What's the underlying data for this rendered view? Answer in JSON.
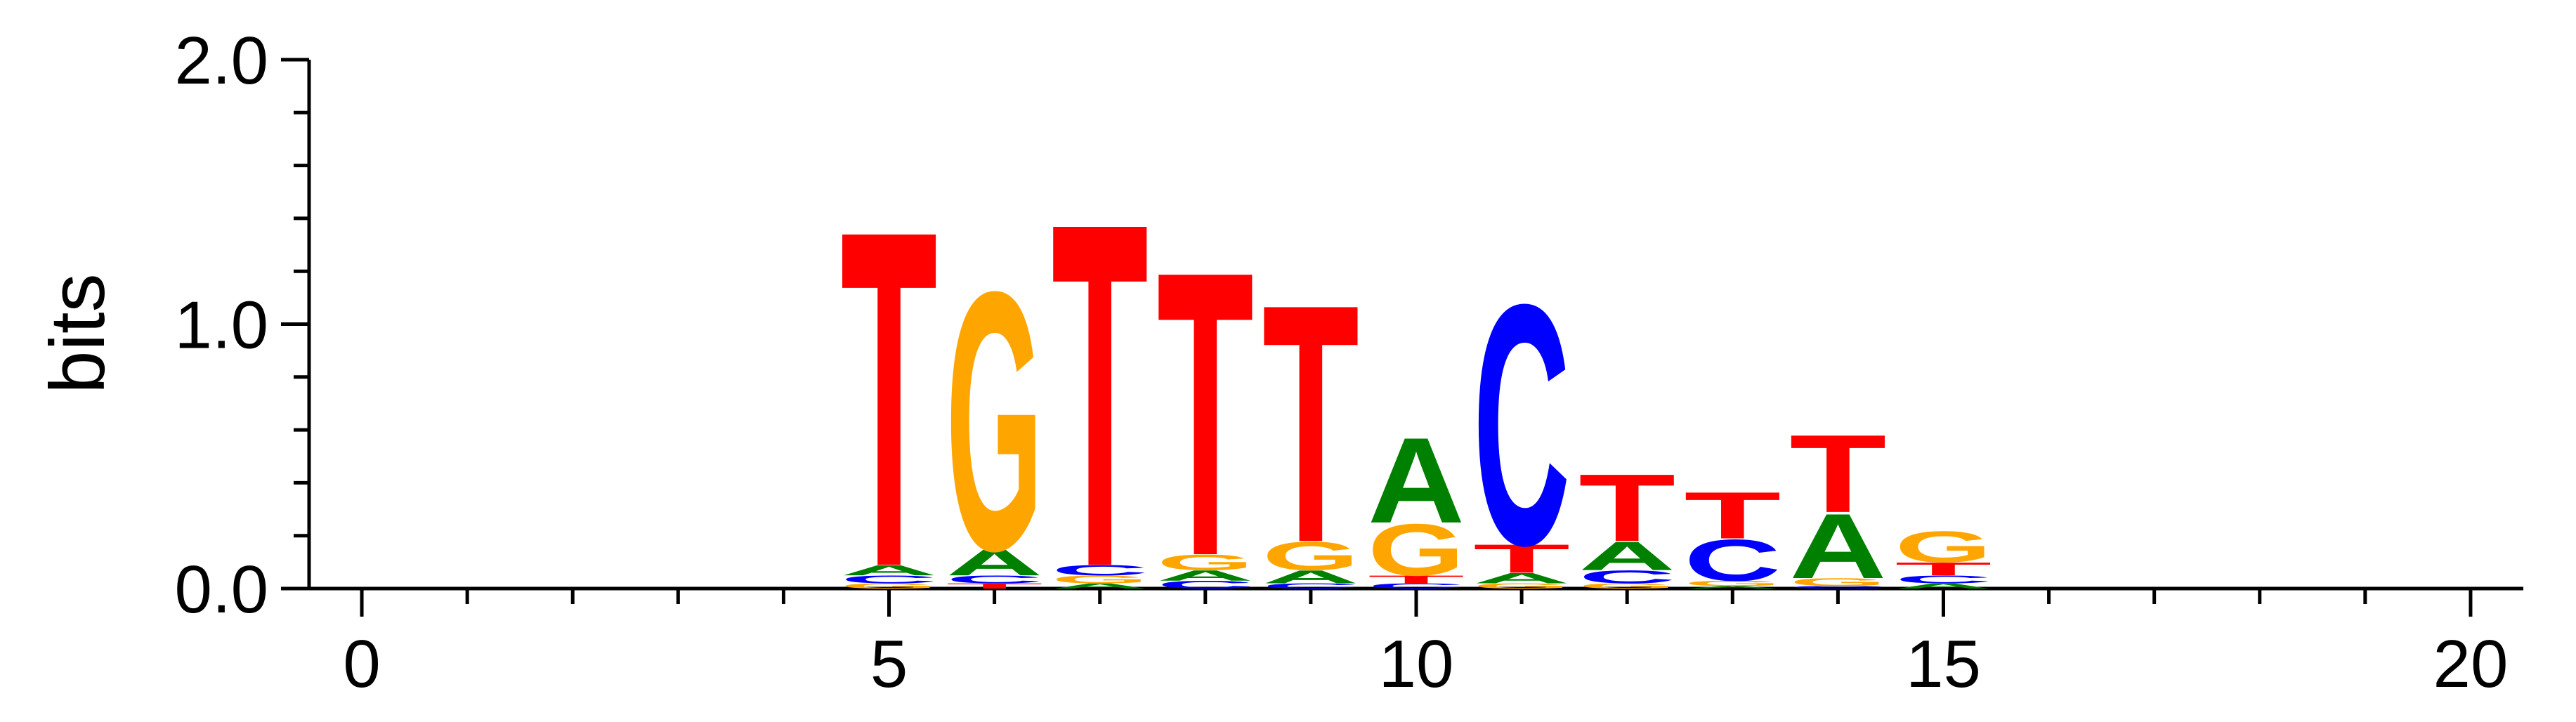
{
  "chart_data": {
    "type": "sequence-logo",
    "title": "",
    "xlabel": "",
    "ylabel": "bits",
    "xlim": [
      -0.5,
      20.5
    ],
    "ylim": [
      0,
      2
    ],
    "x_ticks": [
      0,
      5,
      10,
      15,
      20
    ],
    "x_tick_labels": [
      "0",
      "5",
      "10",
      "15",
      "20"
    ],
    "y_ticks": [
      0,
      1,
      2
    ],
    "y_tick_labels": [
      "0.0",
      "1.0",
      "2.0"
    ],
    "grid": false,
    "colors": {
      "A": "#008000",
      "C": "#0000ff",
      "G": "#ffa500",
      "T": "#ff0000"
    },
    "positions": [
      {
        "x": 5,
        "stack": [
          {
            "letter": "G",
            "height": 0.02
          },
          {
            "letter": "C",
            "height": 0.03
          },
          {
            "letter": "A",
            "height": 0.04
          },
          {
            "letter": "T",
            "height": 1.3
          }
        ]
      },
      {
        "x": 6,
        "stack": [
          {
            "letter": "T",
            "height": 0.02
          },
          {
            "letter": "C",
            "height": 0.03
          },
          {
            "letter": "A",
            "height": 0.1
          },
          {
            "letter": "G",
            "height": 1.0
          }
        ]
      },
      {
        "x": 7,
        "stack": [
          {
            "letter": "A",
            "height": 0.02
          },
          {
            "letter": "G",
            "height": 0.03
          },
          {
            "letter": "C",
            "height": 0.04
          },
          {
            "letter": "T",
            "height": 1.33
          }
        ]
      },
      {
        "x": 8,
        "stack": [
          {
            "letter": "C",
            "height": 0.03
          },
          {
            "letter": "A",
            "height": 0.04
          },
          {
            "letter": "G",
            "height": 0.06
          },
          {
            "letter": "T",
            "height": 1.1
          }
        ]
      },
      {
        "x": 9,
        "stack": [
          {
            "letter": "C",
            "height": 0.02
          },
          {
            "letter": "A",
            "height": 0.05
          },
          {
            "letter": "G",
            "height": 0.11
          },
          {
            "letter": "T",
            "height": 0.92
          }
        ]
      },
      {
        "x": 10,
        "stack": [
          {
            "letter": "C",
            "height": 0.02
          },
          {
            "letter": "T",
            "height": 0.03
          },
          {
            "letter": "G",
            "height": 0.2
          },
          {
            "letter": "A",
            "height": 0.33
          }
        ]
      },
      {
        "x": 11,
        "stack": [
          {
            "letter": "G",
            "height": 0.02
          },
          {
            "letter": "A",
            "height": 0.04
          },
          {
            "letter": "T",
            "height": 0.11
          },
          {
            "letter": "C",
            "height": 0.93
          }
        ]
      },
      {
        "x": 12,
        "stack": [
          {
            "letter": "G",
            "height": 0.02
          },
          {
            "letter": "C",
            "height": 0.05
          },
          {
            "letter": "A",
            "height": 0.11
          },
          {
            "letter": "T",
            "height": 0.26
          }
        ]
      },
      {
        "x": 13,
        "stack": [
          {
            "letter": "A",
            "height": 0.01
          },
          {
            "letter": "G",
            "height": 0.02
          },
          {
            "letter": "C",
            "height": 0.16
          },
          {
            "letter": "T",
            "height": 0.18
          }
        ]
      },
      {
        "x": 14,
        "stack": [
          {
            "letter": "C",
            "height": 0.01
          },
          {
            "letter": "G",
            "height": 0.03
          },
          {
            "letter": "A",
            "height": 0.25
          },
          {
            "letter": "T",
            "height": 0.3
          }
        ]
      },
      {
        "x": 15,
        "stack": [
          {
            "letter": "A",
            "height": 0.02
          },
          {
            "letter": "C",
            "height": 0.03
          },
          {
            "letter": "T",
            "height": 0.05
          },
          {
            "letter": "G",
            "height": 0.12
          }
        ]
      }
    ]
  }
}
